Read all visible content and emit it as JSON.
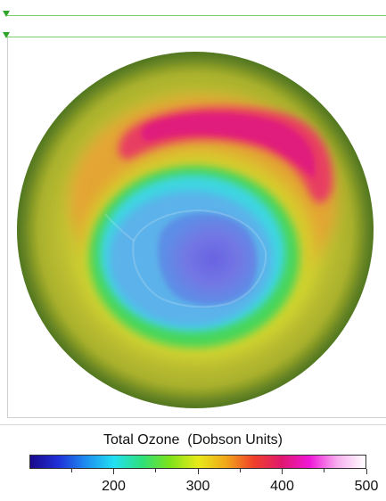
{
  "colorbar": {
    "title": "Total Ozone  (Dobson Units)",
    "min": 100,
    "max": 500,
    "ticks": [
      {
        "value": 200,
        "label": "200"
      },
      {
        "value": 300,
        "label": "300"
      },
      {
        "value": 400,
        "label": "400"
      },
      {
        "value": 500,
        "label": "500"
      }
    ],
    "gradient": [
      "#1a0a8c",
      "#2030d8",
      "#1e8ef0",
      "#22e0f2",
      "#2ee07a",
      "#7ee21a",
      "#e8ea1a",
      "#f0a81a",
      "#f0402a",
      "#e0186e",
      "#f018d8",
      "#f8b0f0",
      "#ffffff"
    ]
  },
  "map": {
    "colors": {
      "outer": "#7a9a2a",
      "ring": "#c8c02a",
      "high_band": "#e83a6a",
      "high_core": "#e01a7a",
      "orange_band": "#f09030",
      "green_ring": "#3ed05a",
      "cyan_ring": "#40d8e8",
      "blue_ring": "#5aa8e8",
      "hole": "#6a6ae0"
    }
  }
}
